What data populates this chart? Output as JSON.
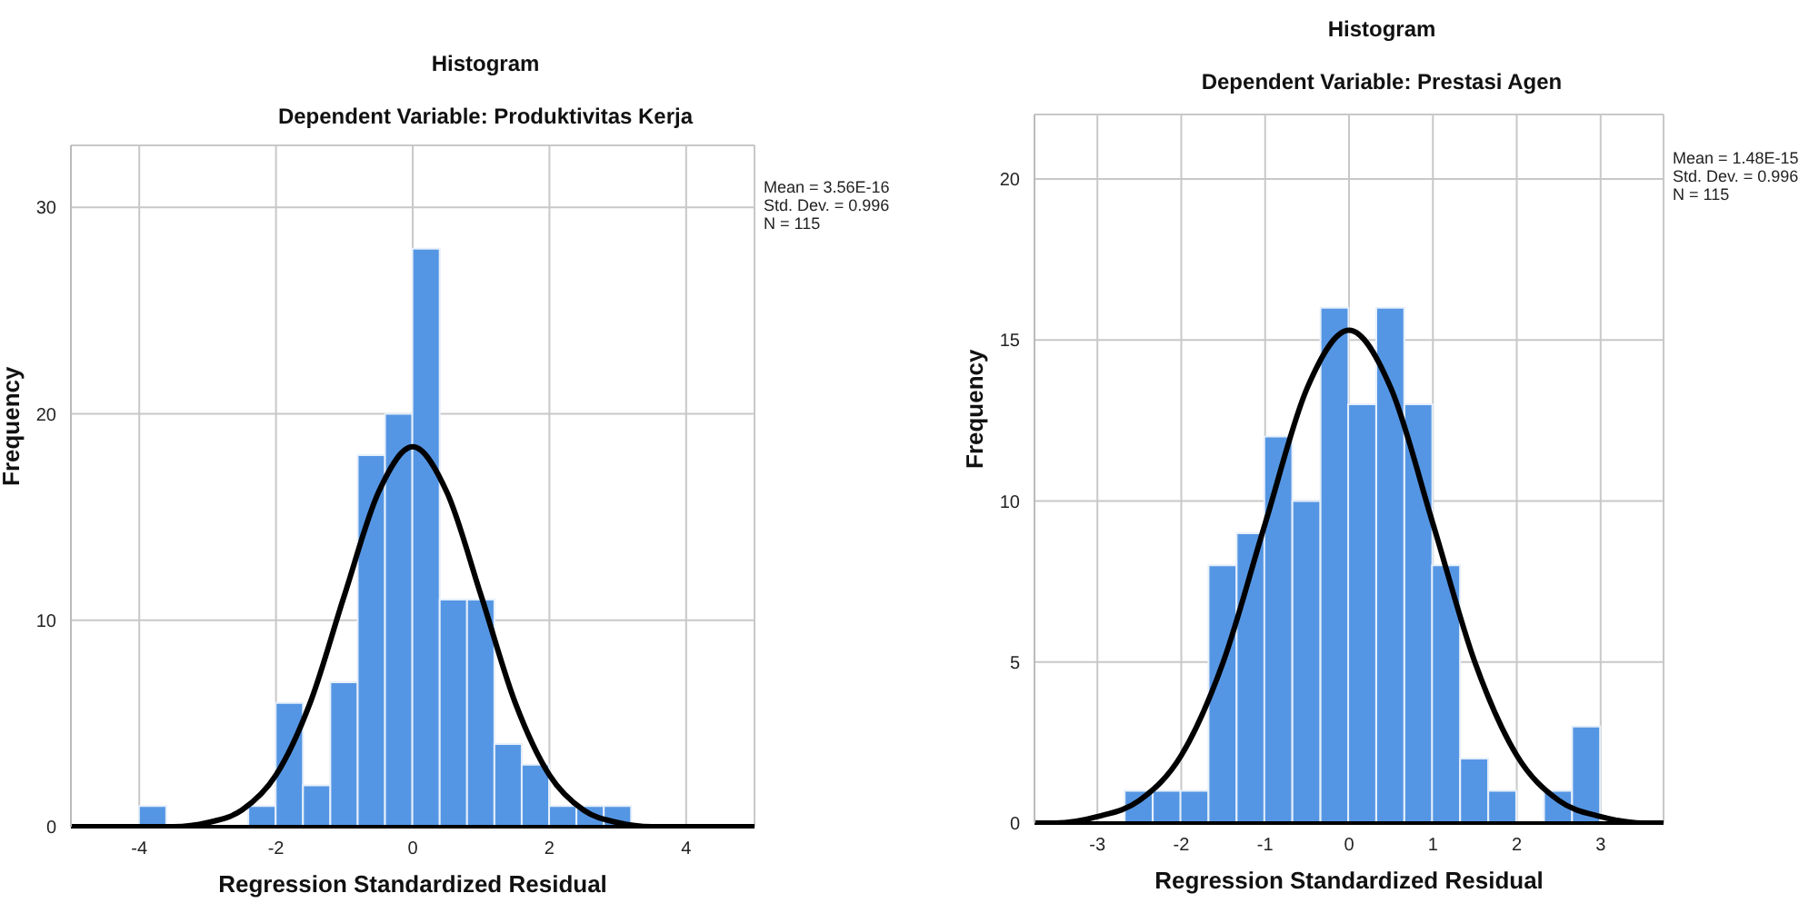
{
  "chart_data": [
    {
      "type": "histogram",
      "title": "Histogram",
      "subtitle": "Dependent Variable: Produktivitas Kerja",
      "xlabel": "Regression Standardized Residual",
      "ylabel": "Frequency",
      "annotations": [
        "Mean = 3.56E-16",
        "Std. Dev. = 0.996",
        "N = 115"
      ],
      "bins": [
        -4,
        -3.6,
        -3.2,
        -2.8,
        -2.4,
        -2,
        -1.6,
        -1.2,
        -0.8,
        -0.4,
        0,
        0.4,
        0.8,
        1.2,
        1.6,
        2,
        2.4,
        2.8,
        3.2
      ],
      "xlim": [
        -5,
        5
      ],
      "xticks": [
        -4,
        -2,
        0,
        2,
        4
      ],
      "ylim": [
        0,
        33
      ],
      "yticks": [
        0,
        10,
        20,
        30
      ],
      "grid": true,
      "series": [
        {
          "type": "histogram",
          "color": "#5596e4",
          "values": [
            1,
            0,
            0,
            0,
            1,
            6,
            2,
            7,
            18,
            20,
            28,
            11,
            11,
            4,
            3,
            1,
            1,
            1
          ]
        },
        {
          "type": "line",
          "color": "#000000",
          "x": [
            -5,
            -4.5,
            -4,
            -3.5,
            -3,
            -2.5,
            -2,
            -1.5,
            -1,
            -0.5,
            0,
            0.5,
            1,
            1.5,
            2,
            2.5,
            3,
            3.5,
            4,
            4.5,
            5
          ],
          "values": [
            0,
            0,
            0,
            0,
            0.2,
            0.8,
            2.5,
            6.0,
            11.2,
            16.2,
            18.4,
            16.2,
            11.2,
            6.0,
            2.5,
            0.8,
            0.2,
            0,
            0,
            0,
            0
          ]
        }
      ]
    },
    {
      "type": "histogram",
      "title": "Histogram",
      "subtitle": "Dependent Variable: Prestasi Agen",
      "xlabel": "Regression Standardized Residual",
      "ylabel": "Frequency",
      "annotations": [
        "Mean = 1.48E-15",
        "Std. Dev. = 0.996",
        "N = 115"
      ],
      "bins": [
        -2.67,
        -2.33,
        -2,
        -1.67,
        -1.33,
        -1,
        -0.67,
        -0.33,
        0,
        0.33,
        0.67,
        1,
        1.33,
        1.67,
        2,
        2.33,
        2.67,
        3
      ],
      "xlim": [
        -3.75,
        3.75
      ],
      "xticks": [
        -3,
        -2,
        -1,
        0,
        1,
        2,
        3
      ],
      "ylim": [
        0,
        22
      ],
      "yticks": [
        0,
        5,
        10,
        15,
        20
      ],
      "grid": true,
      "series": [
        {
          "type": "histogram",
          "color": "#5596e4",
          "values": [
            1,
            1,
            1,
            8,
            9,
            12,
            10,
            16,
            13,
            16,
            13,
            8,
            2,
            1,
            0,
            1,
            3
          ]
        },
        {
          "type": "line",
          "color": "#000000",
          "x": [
            -3.75,
            -3.5,
            -3,
            -2.5,
            -2,
            -1.5,
            -1,
            -0.5,
            0,
            0.5,
            1,
            1.5,
            2,
            2.5,
            3,
            3.5,
            3.75
          ],
          "values": [
            0,
            0,
            0.2,
            0.7,
            2.1,
            5.0,
            9.3,
            13.5,
            15.3,
            13.5,
            9.3,
            5.0,
            2.1,
            0.7,
            0.2,
            0,
            0
          ]
        }
      ]
    }
  ]
}
